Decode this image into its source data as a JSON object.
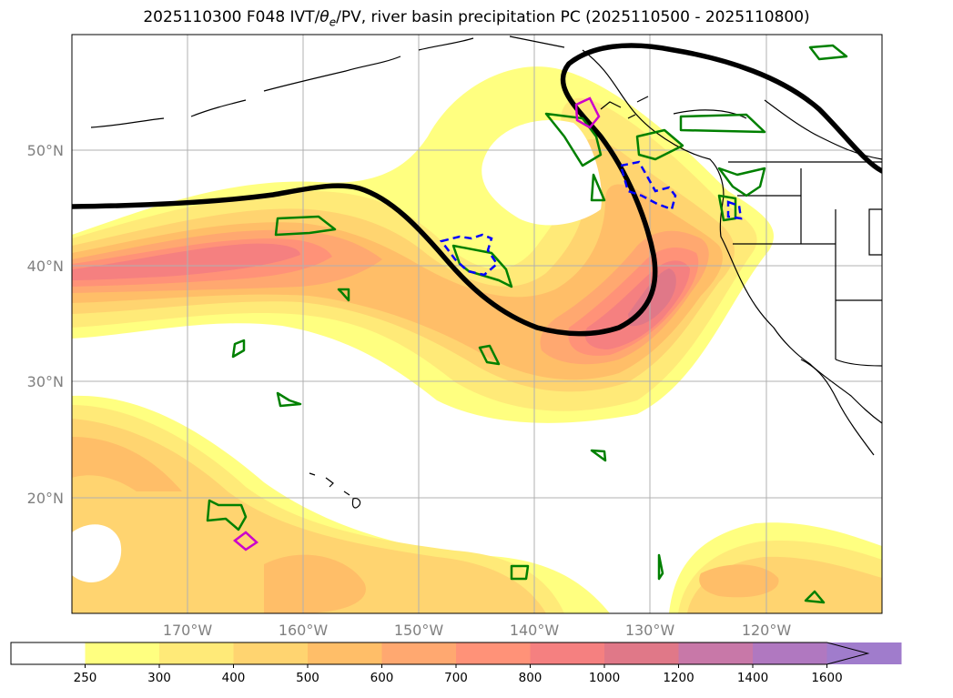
{
  "title": {
    "main": "2025110300 F048 IVT/",
    "theta_symbol": "θ",
    "theta_sub": "e",
    "rest": "/PV, river basin precipitation PC (2025110500 - 2025110800)"
  },
  "map": {
    "projection": "equirectangular",
    "lon_range": [
      -180,
      -110
    ],
    "lat_range": [
      10,
      60
    ],
    "lat_ticks": [
      {
        "value": 50,
        "label": "50°N"
      },
      {
        "value": 40,
        "label": "40°N"
      },
      {
        "value": 30,
        "label": "30°N"
      },
      {
        "value": 20,
        "label": "20°N"
      }
    ],
    "lon_ticks": [
      {
        "value": -170,
        "label": "170°W"
      },
      {
        "value": -160,
        "label": "160°W"
      },
      {
        "value": -150,
        "label": "150°W"
      },
      {
        "value": -140,
        "label": "140°W"
      },
      {
        "value": -130,
        "label": "130°W"
      },
      {
        "value": -120,
        "label": "120°W"
      }
    ],
    "grid": true
  },
  "colorbar": {
    "levels": [
      "250",
      "300",
      "400",
      "500",
      "600",
      "700",
      "800",
      "1000",
      "1200",
      "1400",
      "1600"
    ],
    "colors": [
      "#ffffff",
      "#ffff80",
      "#ffea78",
      "#ffd470",
      "#ffbe68",
      "#ffa870",
      "#ff9278",
      "#f58080",
      "#e07888",
      "#c878a8",
      "#b078c0",
      "#a07ccc"
    ],
    "extend": "max"
  },
  "legend_colors": {
    "pv_contour": "#000000",
    "basin_positive": "#008000",
    "basin_negative": "#0000ff",
    "basin_strong": "#cc00cc",
    "coastline": "#000000"
  }
}
